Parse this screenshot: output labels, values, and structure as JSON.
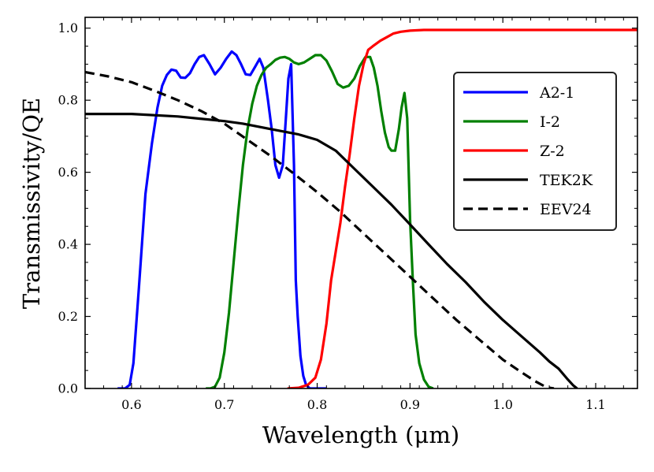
{
  "chart_data": {
    "type": "line",
    "title": "",
    "xlabel": "Wavelength (μm)",
    "ylabel": "Transmissivity/QE",
    "xlim": [
      0.55,
      1.145
    ],
    "ylim": [
      0.0,
      1.03
    ],
    "xticks": [
      0.6,
      0.7,
      0.8,
      0.9,
      1.0,
      1.1
    ],
    "xtick_labels": [
      "0.6",
      "0.7",
      "0.8",
      "0.9",
      "1.0",
      "1.1"
    ],
    "yticks": [
      0.0,
      0.2,
      0.4,
      0.6,
      0.8,
      1.0
    ],
    "ytick_labels": [
      "0.0",
      "0.2",
      "0.4",
      "0.6",
      "0.8",
      "1.0"
    ],
    "grid": false,
    "legend_position": "right",
    "series": [
      {
        "name": "A2-1",
        "color": "#0000ff",
        "dash": "solid",
        "x": [
          0.585,
          0.593,
          0.598,
          0.602,
          0.608,
          0.615,
          0.622,
          0.628,
          0.633,
          0.638,
          0.643,
          0.648,
          0.653,
          0.658,
          0.663,
          0.668,
          0.673,
          0.678,
          0.684,
          0.69,
          0.696,
          0.702,
          0.708,
          0.713,
          0.718,
          0.723,
          0.728,
          0.733,
          0.738,
          0.742,
          0.747,
          0.751,
          0.755,
          0.759,
          0.763,
          0.766,
          0.769,
          0.772,
          0.775,
          0.777,
          0.779,
          0.782,
          0.785,
          0.788,
          0.792,
          0.797,
          0.803,
          0.81
        ],
        "y": [
          0.0,
          0.0,
          0.01,
          0.07,
          0.28,
          0.54,
          0.68,
          0.78,
          0.84,
          0.87,
          0.885,
          0.882,
          0.863,
          0.862,
          0.875,
          0.9,
          0.92,
          0.925,
          0.9,
          0.872,
          0.89,
          0.915,
          0.935,
          0.925,
          0.9,
          0.872,
          0.87,
          0.892,
          0.915,
          0.89,
          0.8,
          0.72,
          0.62,
          0.585,
          0.62,
          0.74,
          0.86,
          0.9,
          0.62,
          0.3,
          0.2,
          0.09,
          0.035,
          0.01,
          0.0,
          0.0,
          0.0,
          0.0
        ]
      },
      {
        "name": "I-2",
        "color": "#008000",
        "dash": "solid",
        "x": [
          0.68,
          0.685,
          0.69,
          0.695,
          0.7,
          0.705,
          0.71,
          0.715,
          0.72,
          0.725,
          0.73,
          0.735,
          0.74,
          0.745,
          0.75,
          0.755,
          0.76,
          0.765,
          0.77,
          0.775,
          0.78,
          0.786,
          0.792,
          0.798,
          0.804,
          0.81,
          0.816,
          0.822,
          0.828,
          0.834,
          0.84,
          0.846,
          0.852,
          0.857,
          0.861,
          0.865,
          0.869,
          0.873,
          0.877,
          0.88,
          0.884,
          0.888,
          0.891,
          0.894,
          0.897,
          0.9,
          0.903,
          0.906,
          0.91,
          0.915,
          0.92,
          0.925
        ],
        "y": [
          0.0,
          0.0,
          0.005,
          0.03,
          0.1,
          0.21,
          0.35,
          0.49,
          0.62,
          0.72,
          0.79,
          0.84,
          0.87,
          0.89,
          0.9,
          0.912,
          0.918,
          0.92,
          0.915,
          0.905,
          0.9,
          0.905,
          0.915,
          0.925,
          0.925,
          0.91,
          0.88,
          0.845,
          0.835,
          0.84,
          0.86,
          0.895,
          0.92,
          0.92,
          0.89,
          0.84,
          0.77,
          0.71,
          0.67,
          0.66,
          0.66,
          0.72,
          0.78,
          0.82,
          0.75,
          0.47,
          0.3,
          0.15,
          0.07,
          0.025,
          0.005,
          0.0
        ]
      },
      {
        "name": "Z-2",
        "color": "#ff0000",
        "dash": "solid",
        "x": [
          0.768,
          0.78,
          0.79,
          0.798,
          0.804,
          0.81,
          0.815,
          0.82,
          0.825,
          0.83,
          0.835,
          0.84,
          0.845,
          0.85,
          0.855,
          0.86,
          0.868,
          0.875,
          0.882,
          0.89,
          0.9,
          0.915,
          0.935,
          0.96,
          1.0,
          1.05,
          1.1,
          1.145
        ],
        "y": [
          0.0,
          0.002,
          0.01,
          0.03,
          0.08,
          0.18,
          0.3,
          0.38,
          0.46,
          0.56,
          0.65,
          0.75,
          0.84,
          0.9,
          0.94,
          0.95,
          0.965,
          0.975,
          0.985,
          0.99,
          0.993,
          0.995,
          0.995,
          0.995,
          0.995,
          0.995,
          0.995,
          0.995
        ]
      },
      {
        "name": "TEK2K",
        "color": "#000000",
        "dash": "solid",
        "x": [
          0.55,
          0.6,
          0.65,
          0.7,
          0.72,
          0.75,
          0.78,
          0.8,
          0.82,
          0.84,
          0.86,
          0.88,
          0.9,
          0.92,
          0.94,
          0.96,
          0.98,
          1.0,
          1.02,
          1.04,
          1.05,
          1.06,
          1.07,
          1.076,
          1.08
        ],
        "y": [
          0.762,
          0.762,
          0.755,
          0.742,
          0.735,
          0.72,
          0.705,
          0.69,
          0.66,
          0.61,
          0.56,
          0.51,
          0.455,
          0.4,
          0.345,
          0.295,
          0.24,
          0.19,
          0.145,
          0.1,
          0.075,
          0.055,
          0.025,
          0.008,
          0.0
        ]
      },
      {
        "name": "EEV24",
        "color": "#000000",
        "dash": "dashed",
        "x": [
          0.55,
          0.575,
          0.6,
          0.625,
          0.65,
          0.675,
          0.7,
          0.725,
          0.75,
          0.775,
          0.8,
          0.825,
          0.85,
          0.875,
          0.9,
          0.925,
          0.95,
          0.975,
          1.0,
          1.02,
          1.035,
          1.045,
          1.05,
          1.055
        ],
        "y": [
          0.878,
          0.866,
          0.85,
          0.826,
          0.8,
          0.77,
          0.735,
          0.69,
          0.645,
          0.596,
          0.545,
          0.49,
          0.43,
          0.37,
          0.31,
          0.25,
          0.19,
          0.135,
          0.08,
          0.045,
          0.02,
          0.006,
          0.002,
          0.0
        ]
      }
    ]
  }
}
